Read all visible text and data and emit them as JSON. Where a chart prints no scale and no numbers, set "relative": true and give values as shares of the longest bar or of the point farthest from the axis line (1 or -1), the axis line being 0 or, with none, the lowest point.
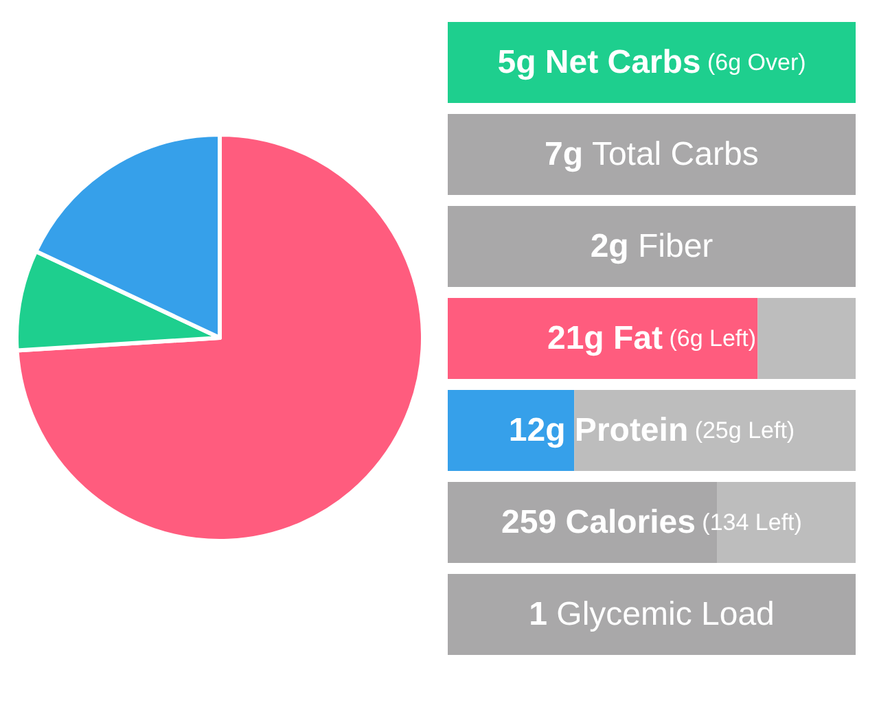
{
  "chart_data": [
    {
      "type": "pie",
      "categories": [
        null,
        null,
        null
      ],
      "values": [
        74,
        8,
        18
      ],
      "colors": [
        "#ff5c7e",
        "#1ecf8e",
        "#36a0ea"
      ]
    },
    {
      "type": "bar",
      "orientation": "horizontal",
      "stacked": true,
      "relative": true,
      "categories": [
        null,
        null,
        null,
        null,
        null,
        null,
        null
      ],
      "series": [
        {
          "colors": [
            "#1ecf8e",
            "#a9a8a9",
            "#a9a8a9",
            "#ff5c7e",
            "#36a0ea",
            "#a9a8a9",
            "#a9a8a9"
          ],
          "values": [
            1,
            1,
            1,
            0.76,
            0.31,
            0.66,
            1
          ]
        },
        {
          "colors": [
            "#bdbdbd",
            "#bdbdbd",
            "#bdbdbd",
            "#bdbdbd",
            "#bdbdbd",
            "#bdbdbd",
            "#bdbdbd"
          ],
          "values": [
            null,
            null,
            null,
            0.24,
            0.69,
            0.34,
            null
          ]
        }
      ],
      "annotations": [
        "5g Net Carbs (6g Over)",
        "7g Total Carbs",
        "2g Fiber",
        "21g Fat (6g Left)",
        "12g Protein (25g Left)",
        "259 Calories (134 Left)",
        "1 Glycemic Load"
      ]
    }
  ]
}
